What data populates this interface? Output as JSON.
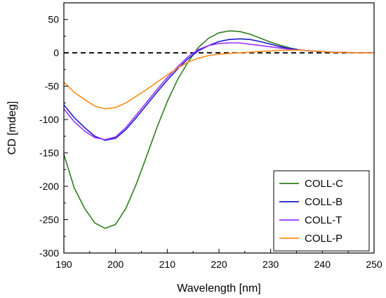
{
  "chart_data": {
    "type": "line",
    "title": "",
    "xlabel": "Wavelength [nm]",
    "ylabel": "CD [mdeg]",
    "xlim": [
      190,
      250
    ],
    "ylim": [
      -300,
      75
    ],
    "x_ticks": [
      190,
      200,
      210,
      220,
      230,
      240,
      250
    ],
    "y_ticks": [
      -300,
      -250,
      -200,
      -150,
      -100,
      -50,
      0,
      50
    ],
    "grid": false,
    "legend_position": "bottom-right",
    "zero_line": {
      "y": 0,
      "style": "dashed",
      "color": "#000000"
    },
    "series": [
      {
        "name": "COLL-C",
        "color": "#2e7d1e",
        "x": [
          190,
          192,
          194,
          196,
          198,
          200,
          202,
          204,
          206,
          208,
          210,
          212,
          214,
          216,
          218,
          220,
          222,
          224,
          226,
          228,
          230,
          232,
          234,
          236,
          238,
          240,
          242,
          244,
          246,
          248,
          250
        ],
        "y": [
          -152,
          -202,
          -233,
          -255,
          -263,
          -257,
          -233,
          -197,
          -155,
          -112,
          -73,
          -40,
          -14,
          8,
          22,
          30,
          33,
          32,
          28,
          22,
          16,
          11,
          7,
          4,
          3,
          2,
          1,
          1,
          0,
          0,
          0
        ]
      },
      {
        "name": "COLL-B",
        "color": "#1a1acc",
        "x": [
          190,
          192,
          194,
          196,
          198,
          200,
          202,
          204,
          206,
          208,
          210,
          212,
          214,
          216,
          218,
          220,
          222,
          224,
          226,
          228,
          230,
          232,
          234,
          236,
          238,
          240,
          242,
          244,
          246,
          248,
          250
        ],
        "y": [
          -78,
          -97,
          -112,
          -125,
          -131,
          -128,
          -115,
          -97,
          -78,
          -59,
          -41,
          -24,
          -9,
          3,
          11,
          17,
          20,
          21,
          20,
          17,
          13,
          9,
          6,
          4,
          3,
          2,
          1,
          1,
          0,
          0,
          0
        ]
      },
      {
        "name": "COLL-T",
        "color": "#9b30ff",
        "x": [
          190,
          192,
          194,
          196,
          198,
          200,
          202,
          204,
          206,
          208,
          210,
          212,
          214,
          216,
          218,
          220,
          222,
          224,
          226,
          228,
          230,
          232,
          234,
          236,
          238,
          240,
          242,
          244,
          246,
          248,
          250
        ],
        "y": [
          -84,
          -103,
          -117,
          -127,
          -130,
          -126,
          -112,
          -93,
          -74,
          -55,
          -37,
          -21,
          -6,
          5,
          11,
          14,
          15,
          15,
          13,
          11,
          9,
          7,
          5,
          4,
          3,
          2,
          1,
          1,
          0,
          0,
          0
        ]
      },
      {
        "name": "COLL-P",
        "color": "#ff8c1a",
        "x": [
          190,
          192,
          194,
          196,
          198,
          200,
          202,
          204,
          206,
          208,
          210,
          212,
          214,
          216,
          218,
          220,
          222,
          224,
          226,
          228,
          230,
          232,
          234,
          236,
          238,
          240,
          242,
          244,
          246,
          248,
          250
        ],
        "y": [
          -44,
          -59,
          -70,
          -80,
          -84,
          -82,
          -75,
          -65,
          -55,
          -44,
          -33,
          -23,
          -14,
          -8,
          -4,
          -2,
          -1,
          0,
          1,
          2,
          3,
          4,
          4,
          4,
          3,
          2,
          1,
          1,
          0,
          0,
          0
        ]
      }
    ]
  }
}
